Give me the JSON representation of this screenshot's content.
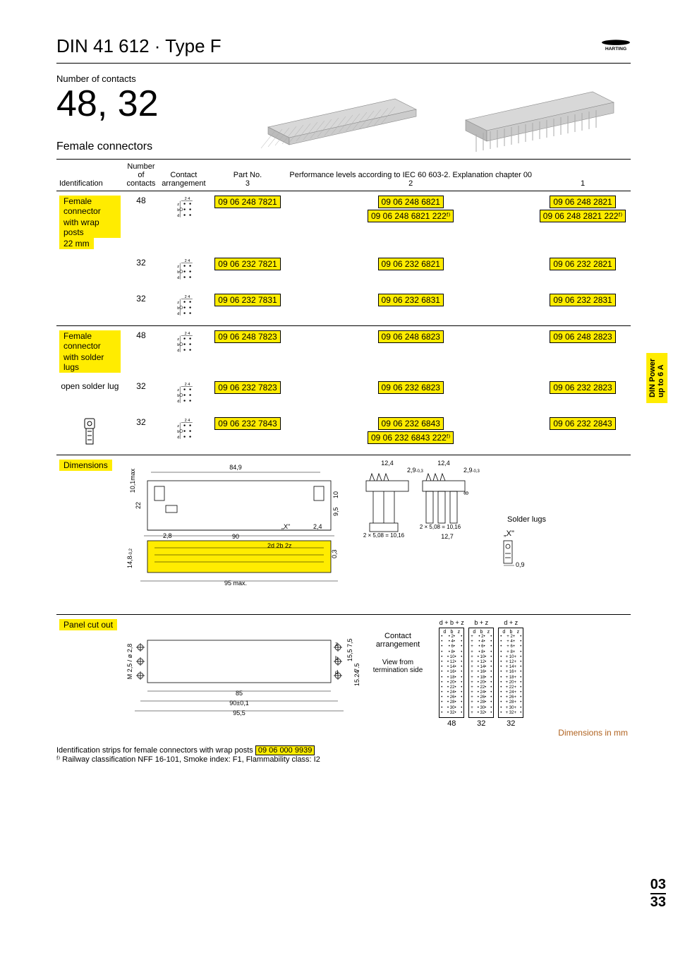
{
  "header": {
    "title": "DIN 41 612 · Type F",
    "logo_text": "HARTING",
    "number_of_contacts_label": "Number of contacts",
    "number_of_contacts_value": "48, 32",
    "subtitle": "Female connectors"
  },
  "table": {
    "headers": {
      "identification": "Identification",
      "number_of_contacts": "Number\nof contacts",
      "contact_arrangement": "Contact\narrangement",
      "part_no": "Part No.",
      "performance": "Performance levels according to IEC 60 603-2. Explanation chapter 00",
      "perf_3": "3",
      "perf_2": "2",
      "perf_1": "1"
    },
    "groups": [
      {
        "identification_lines": [
          "Female connector",
          "with wrap posts",
          "22 mm"
        ],
        "rows": [
          {
            "contacts": "48",
            "parts3": [
              "09 06 248 7821"
            ],
            "parts2": [
              "09 06 248 6821",
              "09 06 248 6821 222ᶠ⁾"
            ],
            "parts1": [
              "09 06 248 2821",
              "09 06 248 2821 222ᶠ⁾"
            ]
          },
          {
            "contacts": "32",
            "parts3": [
              "09 06 232 7821"
            ],
            "parts2": [
              "09 06 232 6821"
            ],
            "parts1": [
              "09 06 232 2821"
            ]
          },
          {
            "contacts": "32",
            "parts3": [
              "09 06 232 7831"
            ],
            "parts2": [
              "09 06 232 6831"
            ],
            "parts1": [
              "09 06 232 2831"
            ]
          }
        ]
      },
      {
        "identification_lines": [
          "Female connector",
          "with solder lugs"
        ],
        "sub_label": "open solder lug",
        "show_solder_icon": true,
        "rows": [
          {
            "contacts": "48",
            "parts3": [
              "09 06 248 7823"
            ],
            "parts2": [
              "09 06 248 6823"
            ],
            "parts1": [
              "09 06 248 2823"
            ]
          },
          {
            "contacts": "32",
            "parts3": [
              "09 06 232 7823"
            ],
            "parts2": [
              "09 06 232 6823"
            ],
            "parts1": [
              "09 06 232 2823"
            ]
          },
          {
            "contacts": "32",
            "parts3": [
              "09 06 232 7843"
            ],
            "parts2": [
              "09 06 232 6843",
              "09 06 232 6843 222ᶠ⁾"
            ],
            "parts1": [
              "09 06 232 2843"
            ]
          }
        ]
      }
    ],
    "dimensions_label": "Dimensions",
    "panel_cutout_label": "Panel cut out",
    "solder_lugs_label": "Solder lugs",
    "contact_arrangement_label": "Contact\narrangement",
    "view_from_label": "View from\ntermination side",
    "dims_in_mm": "Dimensions in mm"
  },
  "dimensions": {
    "main": {
      "w84_9": "84,9",
      "w90": "90",
      "w95max": "95 max.",
      "h22": "22",
      "h14_8": "14,8",
      "tol": "-0,2",
      "w2_8": "2,8",
      "h10_1max": "10,1max",
      "x": "„X\"",
      "h2_4": "2,4",
      "zd2b2z": "2d  2b  2z",
      "h10": "10",
      "h9_5": "9,5",
      "h0_3": "0,3"
    },
    "lug_views": {
      "w12_4": "12,4",
      "h2_9": "2,9",
      "tol": "-0,3",
      "pitch": "2 × 5,08 = 10,16",
      "w12_7": "12,7",
      "h8": "8"
    },
    "solder_x": {
      "x": "„X\"",
      "h0_9": "0,9"
    }
  },
  "panel_cutout": {
    "w85": "85",
    "w90": "90±0,1",
    "w95_5": "95,5",
    "hole": "M 2,5 / ø 2,8",
    "h7_5a": "7,5",
    "h15_5": "15,5",
    "h7_5b": "7,5",
    "h15_24": "15,24",
    "rows": [
      "z",
      "b",
      "d"
    ],
    "arr_headers": [
      "d + b + z",
      "b + z",
      "d   +   z"
    ],
    "arr_footers": [
      "48",
      "32",
      "32"
    ],
    "arr_values": [
      2,
      4,
      6,
      8,
      10,
      12,
      14,
      16,
      18,
      20,
      22,
      24,
      26,
      28,
      30,
      32
    ]
  },
  "side_tab": {
    "line1": "DIN Power",
    "line2": "up to 6 A"
  },
  "page_number": {
    "chapter": "03",
    "page": "33"
  },
  "footnotes": {
    "line1_a": "Identification strips for female connectors with wrap posts ",
    "line1_part": "09 06 000 9939",
    "line2": "ᶠ⁾ Railway classification NFF 16-101, Smoke index: F1, Flammability class: I2"
  },
  "colors": {
    "highlight": "#ffec00",
    "text": "#000000",
    "accent_text": "#b0621f"
  }
}
